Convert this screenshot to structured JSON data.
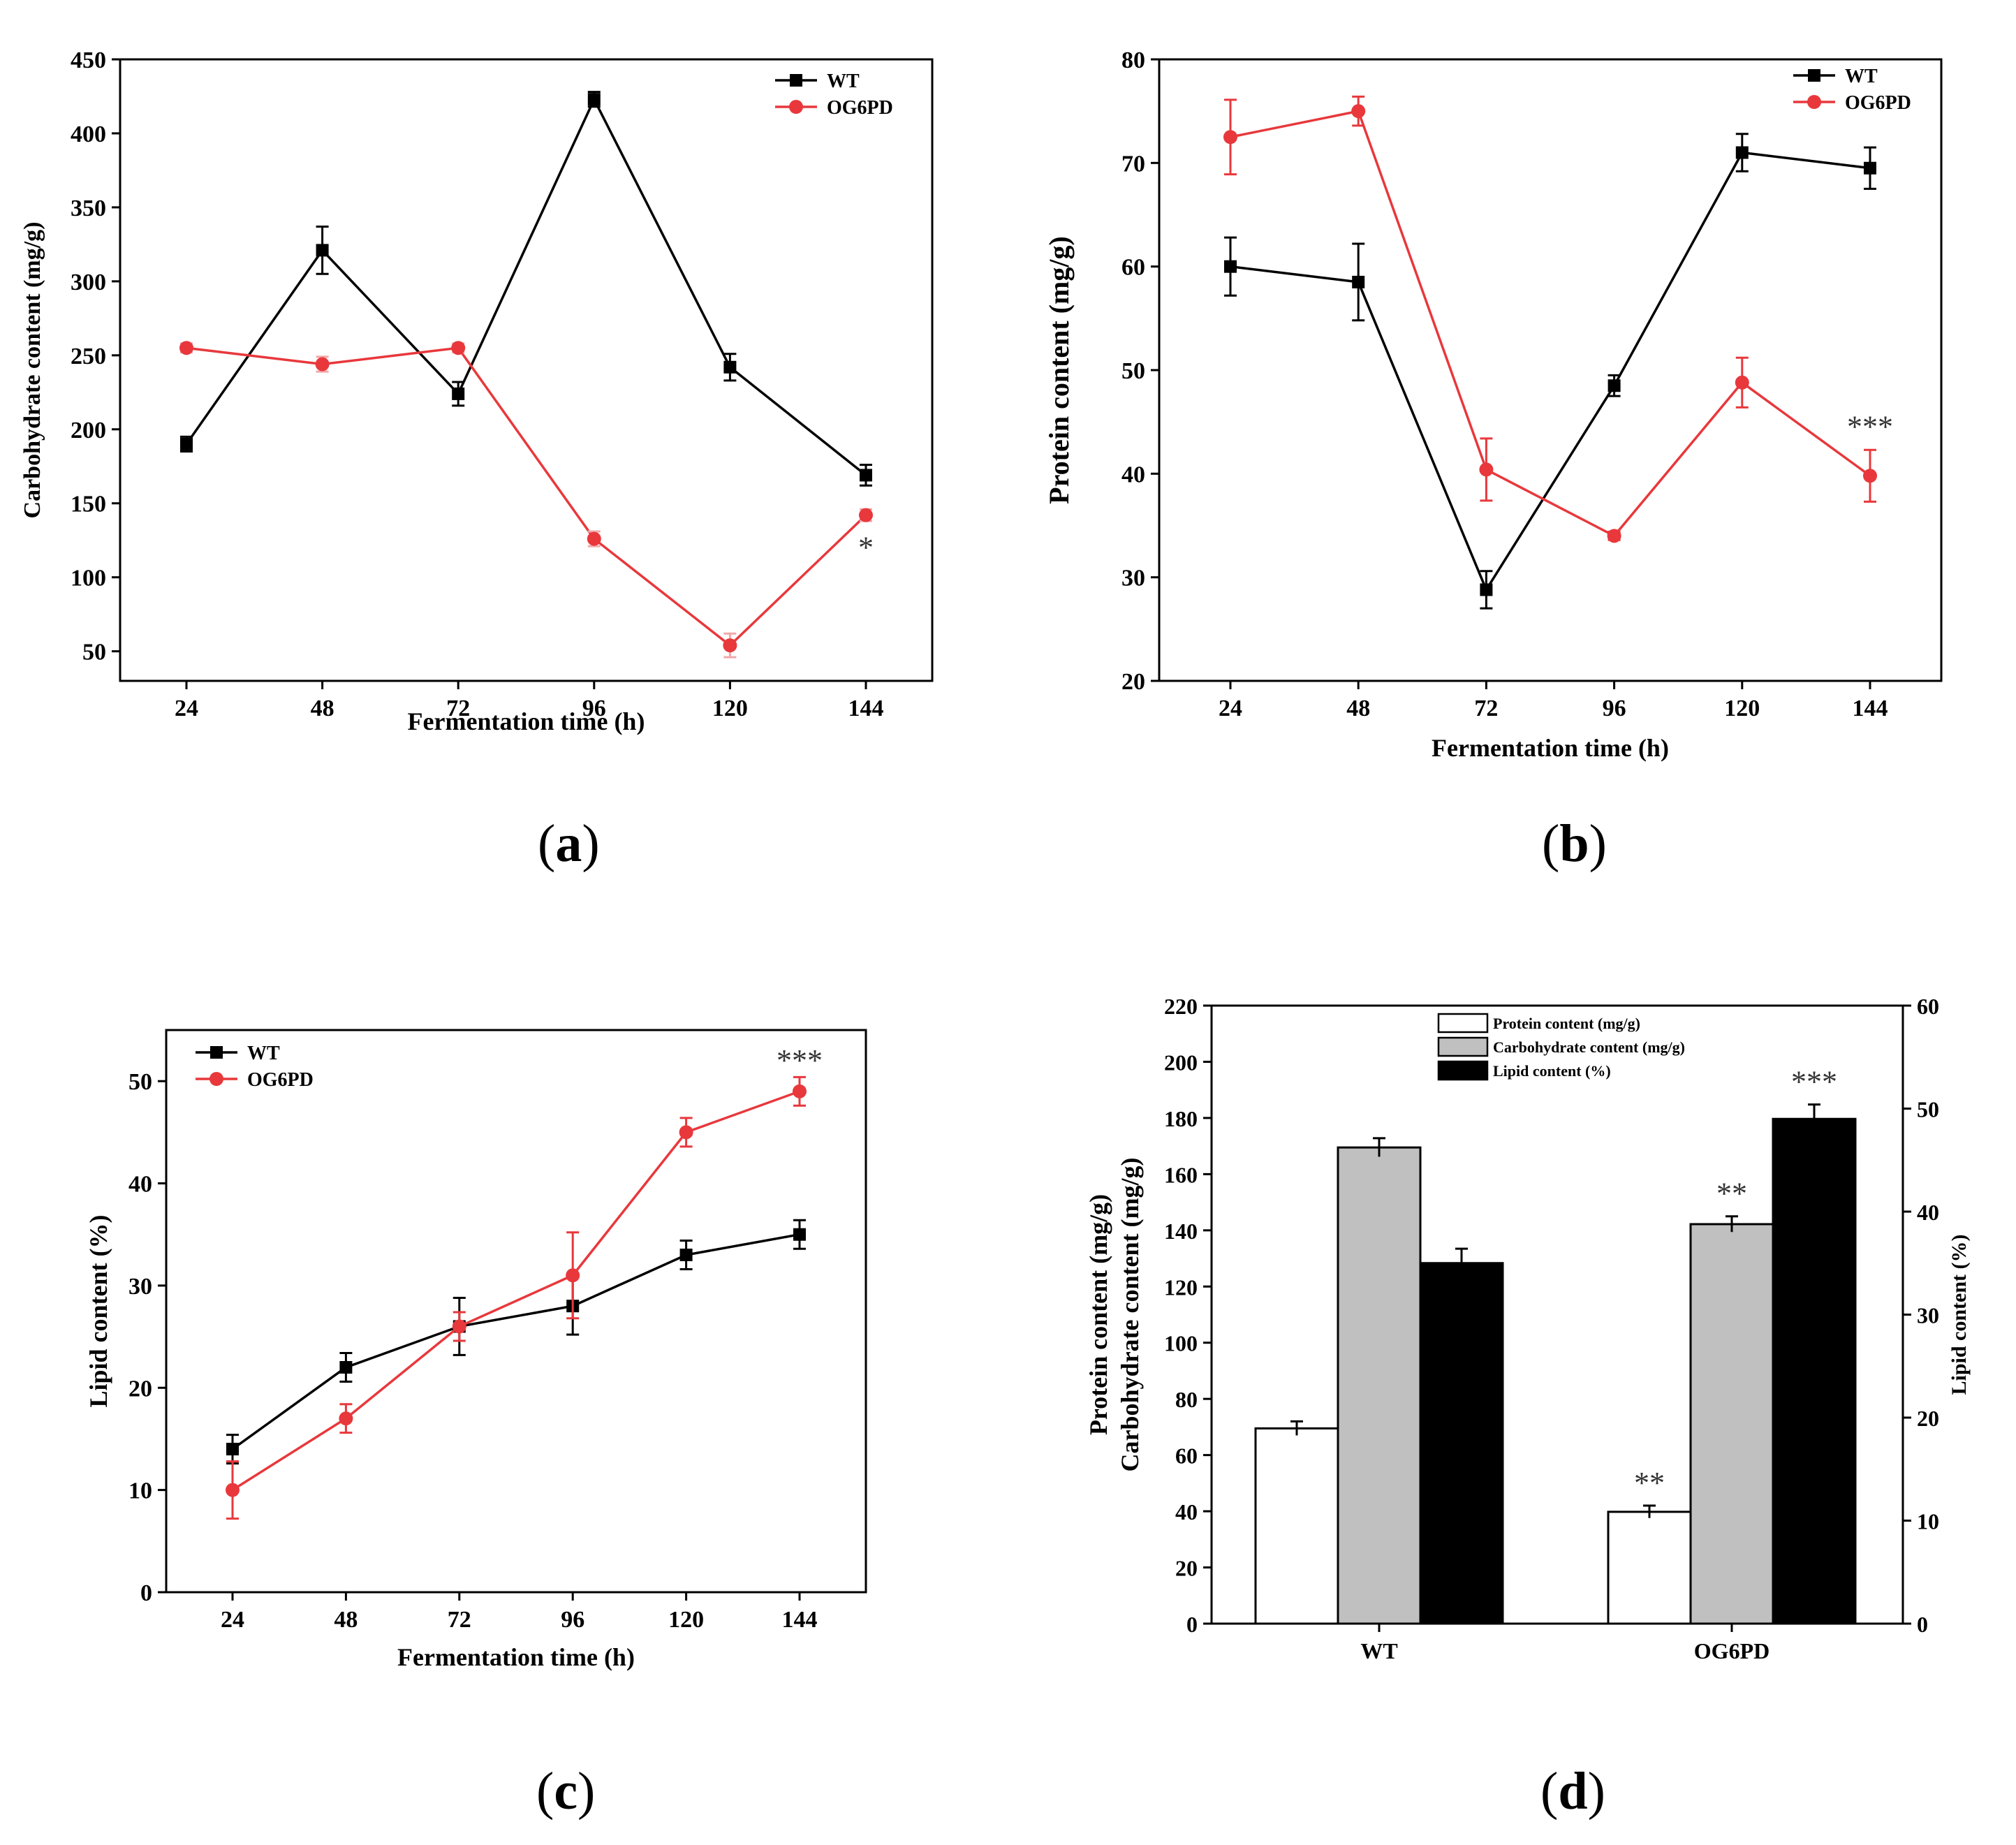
{
  "panels": [
    {
      "label_open": "(",
      "label_letter": "a",
      "label_close": ")"
    },
    {
      "label_open": "(",
      "label_letter": "b",
      "label_close": ")"
    },
    {
      "label_open": "(",
      "label_letter": "c",
      "label_close": ")"
    },
    {
      "label_open": "(",
      "label_letter": "d",
      "label_close": ")"
    }
  ],
  "colors": {
    "wt": "#000000",
    "og6pd": "#e8383c",
    "axis": "#000000",
    "gray_bar": "#c0c0c0",
    "errbar_light": "#f0a8aa"
  },
  "chart_data": [
    {
      "id": "a",
      "type": "line",
      "xlabel": "Fermentation time (h)",
      "ylabel": "Carbohydrate content (mg/g)",
      "x": [
        24,
        48,
        72,
        96,
        120,
        144
      ],
      "x_ticks": [
        "24",
        "48",
        "72",
        "96",
        "120",
        "144"
      ],
      "ylim": [
        30,
        450
      ],
      "y_ticks": [
        "50",
        "100",
        "150",
        "200",
        "250",
        "300",
        "350",
        "400",
        "450"
      ],
      "series": [
        {
          "name": "WT",
          "marker": "square",
          "color": "#000000",
          "values": [
            190,
            321,
            224,
            423,
            242,
            169
          ],
          "errors": [
            5,
            16,
            8,
            5,
            9,
            7
          ]
        },
        {
          "name": "OG6PD",
          "marker": "circle",
          "color": "#e8383c",
          "values": [
            255,
            244,
            255,
            126,
            54,
            142
          ],
          "errors": [
            3,
            5,
            3,
            5,
            8,
            4
          ]
        }
      ],
      "annotations": [
        {
          "text": "*",
          "x": 144,
          "y": 120
        }
      ],
      "legend": "top-right"
    },
    {
      "id": "b",
      "type": "line",
      "xlabel": "Fermentation time (h)",
      "ylabel": "Protein content (mg/g)",
      "x": [
        24,
        48,
        72,
        96,
        120,
        144
      ],
      "x_ticks": [
        "24",
        "48",
        "72",
        "96",
        "120",
        "144"
      ],
      "ylim": [
        20,
        80
      ],
      "y_ticks": [
        "20",
        "30",
        "40",
        "50",
        "60",
        "70",
        "80"
      ],
      "series": [
        {
          "name": "WT",
          "marker": "square",
          "color": "#000000",
          "values": [
            60,
            58.5,
            28.8,
            48.5,
            71,
            69.5
          ],
          "errors": [
            2.8,
            3.7,
            1.8,
            1,
            1.8,
            2
          ]
        },
        {
          "name": "OG6PD",
          "marker": "circle",
          "color": "#e8383c",
          "values": [
            72.5,
            75,
            40.4,
            34,
            48.8,
            39.8
          ],
          "errors": [
            3.6,
            1.4,
            3,
            0.4,
            2.4,
            2.5
          ]
        }
      ],
      "annotations": [
        {
          "text": "***",
          "x": 144,
          "y": 44.5
        }
      ],
      "legend": "top-right"
    },
    {
      "id": "c",
      "type": "line",
      "xlabel": "Fermentation time (h)",
      "ylabel": "Lipid content (%)",
      "x": [
        24,
        48,
        72,
        96,
        120,
        144
      ],
      "x_ticks": [
        "24",
        "48",
        "72",
        "96",
        "120",
        "144"
      ],
      "ylim": [
        0,
        55
      ],
      "y_ticks": [
        "0",
        "10",
        "20",
        "30",
        "40",
        "50"
      ],
      "series": [
        {
          "name": "WT",
          "marker": "square",
          "color": "#000000",
          "values": [
            14,
            22,
            26,
            28,
            33,
            35
          ],
          "errors": [
            1.4,
            1.4,
            2.8,
            2.8,
            1.4,
            1.4
          ]
        },
        {
          "name": "OG6PD",
          "marker": "circle",
          "color": "#e8383c",
          "values": [
            10,
            17,
            26,
            31,
            45,
            49
          ],
          "errors": [
            2.8,
            1.4,
            1.4,
            4.2,
            1.4,
            1.4
          ]
        }
      ],
      "annotations": [
        {
          "text": "***",
          "x": 144,
          "y": 52
        }
      ],
      "legend": "top-left"
    },
    {
      "id": "d",
      "type": "bar",
      "categories": [
        "WT",
        "OG6PD"
      ],
      "ylabel_lines": [
        "Protein content (mg/g)",
        "Carbohydrate content (mg/g)"
      ],
      "y2label": "Lipid content (%)",
      "ylim": [
        0,
        220
      ],
      "y_ticks": [
        "0",
        "20",
        "40",
        "60",
        "80",
        "100",
        "120",
        "140",
        "160",
        "180",
        "200",
        "220"
      ],
      "y2lim": [
        0,
        60
      ],
      "y2_ticks": [
        "0",
        "10",
        "20",
        "30",
        "40",
        "50",
        "60"
      ],
      "series": [
        {
          "name": "Protein content (mg/g)",
          "fill": "#ffffff",
          "axis": "left",
          "values": [
            69.5,
            39.8
          ],
          "errors": [
            2.5,
            2.2
          ]
        },
        {
          "name": "Carbohydrate content (mg/g)",
          "fill": "#c0c0c0",
          "axis": "left",
          "values": [
            169.5,
            142.2
          ],
          "errors": [
            3.3,
            2.8
          ]
        },
        {
          "name": "Lipid content (%)",
          "fill": "#000000",
          "axis": "right",
          "values": [
            35,
            49
          ],
          "errors": [
            1.4,
            1.4
          ]
        }
      ],
      "annotations": [
        {
          "text": "**",
          "category": 1,
          "series": 0
        },
        {
          "text": "**",
          "category": 1,
          "series": 1
        },
        {
          "text": "***",
          "category": 1,
          "series": 2
        }
      ],
      "legend": "top-center"
    }
  ]
}
